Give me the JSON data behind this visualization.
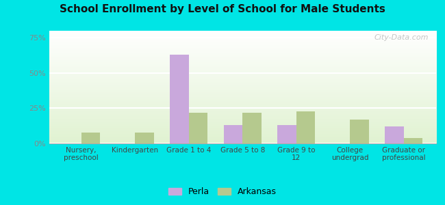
{
  "title": "School Enrollment by Level of School for Male Students",
  "categories": [
    "Nursery,\npreschool",
    "Kindergarten",
    "Grade 1 to 4",
    "Grade 5 to 8",
    "Grade 9 to\n12",
    "College\nundergrad",
    "Graduate or\nprofessional"
  ],
  "perla": [
    0.0,
    0.0,
    63.0,
    13.0,
    13.0,
    0.0,
    12.0
  ],
  "arkansas": [
    8.0,
    8.0,
    22.0,
    22.0,
    23.0,
    17.0,
    4.0
  ],
  "perla_color": "#c9a8dc",
  "arkansas_color": "#b5c98e",
  "background_color": "#00e5e5",
  "title_color": "#111111",
  "tick_color": "#888888",
  "ylim": [
    0,
    80
  ],
  "yticks": [
    0,
    25,
    50,
    75
  ],
  "ytick_labels": [
    "0%",
    "25%",
    "50%",
    "75%"
  ],
  "watermark": "City-Data.com",
  "legend_perla": "Perla",
  "legend_arkansas": "Arkansas",
  "bar_width": 0.35
}
